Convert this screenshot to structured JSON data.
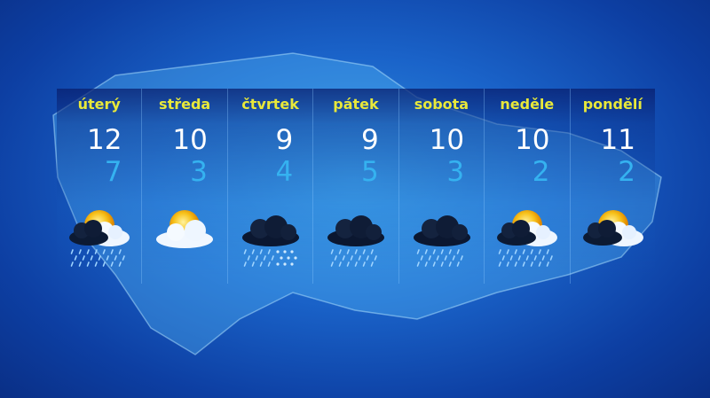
{
  "colors": {
    "day_label": "#e8e83a",
    "high_temp": "#ffffff",
    "low_temp": "#35b2f0",
    "background": "#1a63c9"
  },
  "days": [
    {
      "name": "úterý",
      "high": "12",
      "low": "7",
      "icon": "sun-dark-cloud-rain-icon"
    },
    {
      "name": "středa",
      "high": "10",
      "low": "3",
      "icon": "sun-cloud-icon"
    },
    {
      "name": "čtvrtek",
      "high": "9",
      "low": "4",
      "icon": "dark-cloud-rain-snow-icon"
    },
    {
      "name": "pátek",
      "high": "9",
      "low": "5",
      "icon": "dark-cloud-rain-icon"
    },
    {
      "name": "sobota",
      "high": "10",
      "low": "3",
      "icon": "dark-cloud-rain-icon"
    },
    {
      "name": "neděle",
      "high": "10",
      "low": "2",
      "icon": "sun-dark-cloud-rain-icon"
    },
    {
      "name": "pondělí",
      "high": "11",
      "low": "2",
      "icon": "sun-dark-cloud-icon"
    }
  ]
}
